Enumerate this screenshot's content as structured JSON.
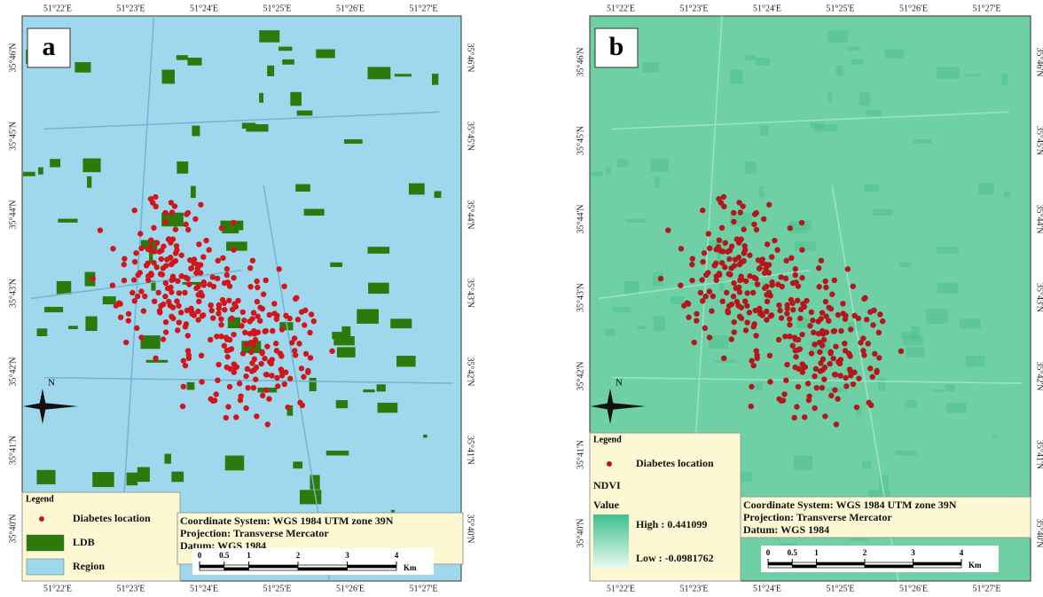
{
  "panels": [
    {
      "label": "a",
      "lon_ticks": [
        "51°22'E",
        "51°23'E",
        "51°24'E",
        "51°25'E",
        "51°26'E",
        "51°27'E"
      ],
      "lat_ticks": [
        "35°46'N",
        "35°45'N",
        "35°44'N",
        "35°43'N",
        "35°42'N",
        "35°41'N",
        "35°40'N"
      ],
      "north": "N",
      "legend": {
        "title": "Legend",
        "items": [
          {
            "label": "Diabetes location",
            "color": "#d0161b"
          },
          {
            "label": "LDB",
            "color": "#2b7a0b"
          },
          {
            "label": "Region",
            "color": "#9fd7ec"
          }
        ]
      },
      "info": [
        "Coordinate System: WGS 1984 UTM zone 39N",
        "Projection: Transverse Mercator",
        "Datum: WGS 1984"
      ],
      "scale": {
        "ticks": [
          0,
          0.5,
          1,
          2,
          3,
          4
        ],
        "unit": "Km"
      }
    },
    {
      "label": "b",
      "lon_ticks": [
        "51°22'E",
        "51°23'E",
        "51°24'E",
        "51°25'E",
        "51°26'E",
        "51°27'E"
      ],
      "lat_ticks": [
        "35°46'N",
        "35°45'N",
        "35°44'N",
        "35°43'N",
        "35°42'N",
        "35°41'N",
        "35°40'N"
      ],
      "north": "N",
      "legend": {
        "title": "Legend",
        "items": [
          {
            "label": "Diabetes location",
            "color": "#b5161b"
          }
        ],
        "layer": "NDVI",
        "field": "Value",
        "high": "High : 0.441099",
        "low": "Low : -0.0981762"
      },
      "info": [
        "Coordinate System: WGS 1984 UTM zone 39N",
        "Projection: Transverse Mercator",
        "Datum: WGS 1984"
      ],
      "scale": {
        "ticks": [
          0,
          0.5,
          1,
          2,
          3,
          4
        ],
        "unit": "Km"
      }
    }
  ]
}
